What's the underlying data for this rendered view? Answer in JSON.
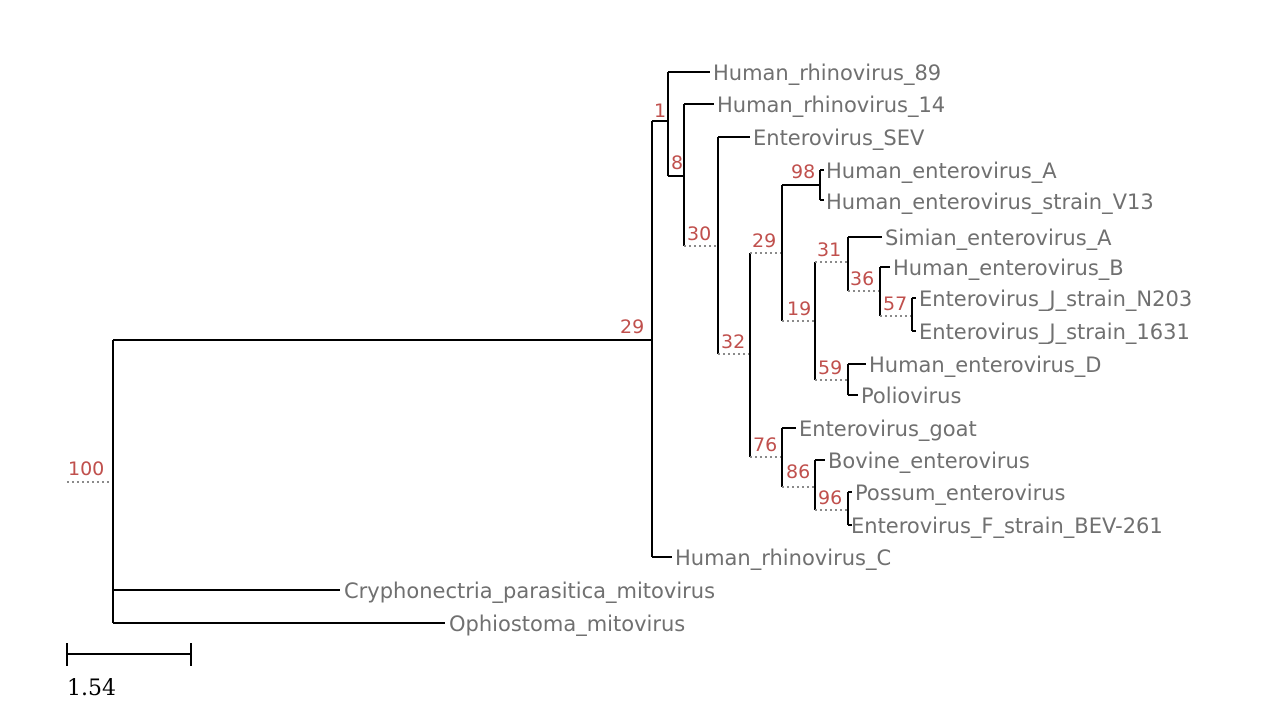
{
  "colors": {
    "branch": "#000000",
    "leaf_label": "#707070",
    "support_label": "#c0504d",
    "dotted_connector": "#8a8a8a"
  },
  "scale_bar": {
    "label": "1.54"
  },
  "leaves": {
    "hrv89": "Human_rhinovirus_89",
    "hrv14": "Human_rhinovirus_14",
    "sev": "Enterovirus_SEV",
    "hevA": "Human_enterovirus_A",
    "hevV13": "Human_enterovirus_strain_V13",
    "simA": "Simian_enterovirus_A",
    "hevB": "Human_enterovirus_B",
    "evJN203": "Enterovirus_J_strain_N203",
    "evJ1631": "Enterovirus_J_strain_1631",
    "hevD": "Human_enterovirus_D",
    "polio": "Poliovirus",
    "goat": "Enterovirus_goat",
    "bovine": "Bovine_enterovirus",
    "possum": "Possum_enterovirus",
    "evF": "Enterovirus_F_strain_BEV-261",
    "hrvC": "Human_rhinovirus_C",
    "cryph": "Cryphonectria_parasitica_mitovirus",
    "ophio": "Ophiostoma_mitovirus"
  },
  "support": {
    "root": "100",
    "n29a": "29",
    "n1": "1",
    "n8": "8",
    "n30": "30",
    "n32": "32",
    "n29b": "29",
    "n98": "98",
    "n19": "19",
    "n31": "31",
    "n36": "36",
    "n57": "57",
    "n59": "59",
    "n76": "76",
    "n86": "86",
    "n96": "96"
  }
}
